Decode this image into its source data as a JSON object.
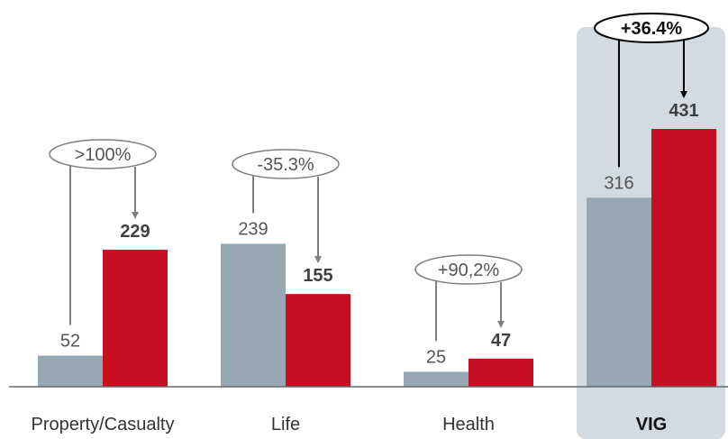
{
  "colors": {
    "previous": "#97a8b2",
    "current": "#c80f22",
    "arrow": "#7f7f7f",
    "highlight_bg": "#d3dbe0"
  },
  "chart_data": {
    "type": "bar",
    "categories": [
      "Property/Casualty",
      "Life",
      "Health",
      "VIG"
    ],
    "series": [
      {
        "values": [
          52,
          239,
          25,
          316
        ]
      },
      {
        "values": [
          229,
          155,
          47,
          431
        ]
      }
    ],
    "changes": [
      ">100%",
      "-35.3%",
      "+90,2%",
      "+36.4%"
    ],
    "highlighted_category": "VIG",
    "ylim": [
      0,
      480
    ],
    "grid": false
  }
}
